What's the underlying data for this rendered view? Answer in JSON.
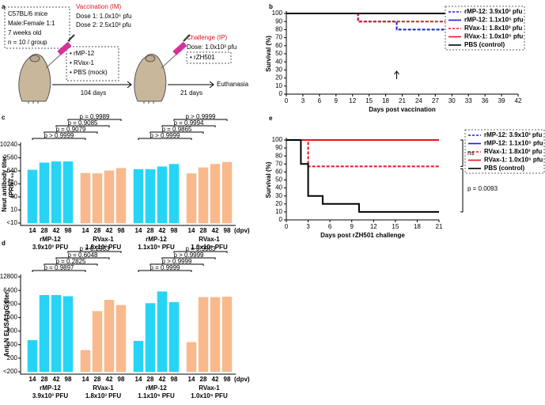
{
  "panel_a": {
    "label": "a",
    "cohort": [
      "C57BL/6 mice",
      "Male:Female 1:1",
      "7 weeks old",
      "n = 10 / group"
    ],
    "vaccination": {
      "title": "Vaccination (IM)",
      "doses": [
        "Dose 1: 1.0x10⁶ pfu",
        "Dose 2: 2.5x10³ pfu"
      ]
    },
    "groups": [
      "• rMP-12",
      "• RVax-1",
      "• PBS (mock)"
    ],
    "challenge": {
      "title": "Challenge (IP)",
      "dose": "Dose: 1.0x10³ pfu",
      "virus": "• rZH501"
    },
    "interval_1": "104 days",
    "interval_2": "21 days",
    "endpoint": "Euthanasia"
  },
  "chart_data": [
    {
      "panel": "b",
      "type": "line",
      "xlabel": "Days post vaccination",
      "ylabel": "Survival (%)",
      "xlim": [
        0,
        42
      ],
      "xticks": [
        0,
        3,
        6,
        9,
        12,
        15,
        18,
        21,
        24,
        27,
        30,
        33,
        36,
        39,
        42
      ],
      "ylim": [
        0,
        100
      ],
      "yticks": [
        0,
        10,
        20,
        30,
        40,
        50,
        60,
        70,
        80,
        90,
        100
      ],
      "legend": "upper right",
      "series": [
        {
          "name": "rMP-12: 3.9x10³ pfu",
          "color": "#1a1ae6",
          "line_style": "dashed",
          "x": [
            0,
            13,
            13,
            20,
            20,
            42
          ],
          "values": [
            100,
            100,
            90,
            90,
            80,
            80
          ]
        },
        {
          "name": "rMP-12: 1.1x10⁵ pfu",
          "color": "#1a1ae6",
          "line_style": "solid",
          "x": [
            0,
            42
          ],
          "values": [
            100,
            100
          ]
        },
        {
          "name": "RVax-1: 1.8x10³ pfu",
          "color": "#e8141a",
          "line_style": "dashed",
          "x": [
            0,
            13,
            13,
            42
          ],
          "values": [
            100,
            100,
            90,
            90
          ]
        },
        {
          "name": "RVax-1: 1.0x10⁵ pfu",
          "color": "#e8141a",
          "line_style": "solid",
          "x": [
            0,
            42
          ],
          "values": [
            100,
            100
          ]
        },
        {
          "name": "PBS (control)",
          "color": "#000000",
          "line_style": "solid",
          "x": [
            0,
            42
          ],
          "values": [
            100,
            100
          ]
        }
      ]
    },
    {
      "panel": "c",
      "type": "bar",
      "ylabel": [
        "Neut antibody titer",
        "(PRNT₅₀)"
      ],
      "log_scale": true,
      "ylim": [
        2.5,
        10240
      ],
      "yticks": [
        {
          "value": 2.5,
          "label": "<10"
        },
        10,
        40,
        160,
        640,
        2560,
        10240
      ],
      "categories": [
        "14",
        "28",
        "42",
        "98"
      ],
      "x_unit": "(dpv)",
      "series": [
        {
          "name": "rMP-12",
          "dose": "3.9x10³ PFU",
          "color": "#27d4f5",
          "values": [
            700,
            1500,
            1700,
            1700
          ]
        },
        {
          "name": "RVax-1",
          "dose": "1.8x10³ PFU",
          "color": "#f9b98c",
          "values": [
            500,
            480,
            650,
            850
          ]
        },
        {
          "name": "rMP-12",
          "dose": "1.1x10⁵ PFU",
          "color": "#27d4f5",
          "values": [
            750,
            750,
            1000,
            1300
          ]
        },
        {
          "name": "RVax-1",
          "dose": "1.0x10⁵ PFU",
          "color": "#f9b98c",
          "values": [
            480,
            900,
            1300,
            1600
          ]
        }
      ],
      "comparisons": [
        [
          "p = 0.9989",
          "p = 0.9085",
          "p = 0.9079",
          "p > 0.9999"
        ],
        [
          "p > 0.9999",
          "p = 0.9994",
          "p = 0.9865",
          "p > 0.9999"
        ]
      ]
    },
    {
      "panel": "d",
      "type": "bar",
      "ylabel": [
        "Anti-N ELISA IgG titer"
      ],
      "log_scale": true,
      "ylim": [
        100,
        12800
      ],
      "yticks": [
        {
          "value": 100,
          "label": "<200"
        },
        200,
        400,
        800,
        1600,
        3200,
        6400,
        12800
      ],
      "categories": [
        "14",
        "28",
        "42",
        "98"
      ],
      "x_unit": "(dpv)",
      "series": [
        {
          "name": "rMP-12",
          "dose": "3.9x10³ PFU",
          "color": "#27d4f5",
          "values": [
            500,
            5000,
            5000,
            4700
          ]
        },
        {
          "name": "RVax-1",
          "dose": "1.8x10³ PFU",
          "color": "#f9b98c",
          "values": [
            300,
            2200,
            3900,
            3000
          ]
        },
        {
          "name": "rMP-12",
          "dose": "1.1x10⁵ PFU",
          "color": "#27d4f5",
          "values": [
            480,
            3300,
            6000,
            3500
          ]
        },
        {
          "name": "RVax-1",
          "dose": "1.0x10⁵ PFU",
          "color": "#f9b98c",
          "values": [
            450,
            4500,
            4500,
            4600
          ]
        }
      ],
      "comparisons": [
        [
          "p = 0.2933",
          "p = 0.6048",
          "p = 0.2825",
          "p = 0.9897"
        ],
        [
          "p = 0.9983",
          "p > 0.9999",
          "p > 0.9999",
          "p = 0.9999"
        ]
      ]
    },
    {
      "panel": "e",
      "type": "line",
      "xlabel": "Days post rZH501 challenge",
      "ylabel": "Survival (%)",
      "xlim": [
        0,
        21
      ],
      "xticks": [
        0,
        3,
        6,
        9,
        12,
        15,
        18,
        21
      ],
      "ylim": [
        0,
        100
      ],
      "yticks": [
        0,
        10,
        20,
        30,
        40,
        50,
        60,
        70,
        80,
        90,
        100
      ],
      "legend": "upper right",
      "series": [
        {
          "name": "rMP-12: 3.9x10³ pfu",
          "color": "#1a1ae6",
          "line_style": "dashed",
          "x": [
            0,
            21
          ],
          "values": [
            100,
            100
          ]
        },
        {
          "name": "rMP-12: 1.1x10⁵ pfu",
          "color": "#1a1ae6",
          "line_style": "solid",
          "x": [
            0,
            21
          ],
          "values": [
            100,
            100
          ]
        },
        {
          "name": "RVax-1: 1.8x10³ pfu",
          "color": "#e8141a",
          "line_style": "dashed",
          "x": [
            0,
            3,
            3,
            21
          ],
          "values": [
            100,
            100,
            67,
            67
          ]
        },
        {
          "name": "RVax-1: 1.0x10⁵ pfu",
          "color": "#e8141a",
          "line_style": "solid",
          "x": [
            0,
            21
          ],
          "values": [
            100,
            100
          ]
        },
        {
          "name": "PBS (control)",
          "color": "#000000",
          "line_style": "solid",
          "x": [
            0,
            2,
            2,
            3,
            3,
            5,
            5,
            10,
            10,
            21
          ],
          "values": [
            100,
            100,
            70,
            70,
            30,
            30,
            20,
            20,
            10,
            10
          ]
        }
      ],
      "annotations": [
        "ns",
        "p = 0.0093"
      ]
    }
  ]
}
